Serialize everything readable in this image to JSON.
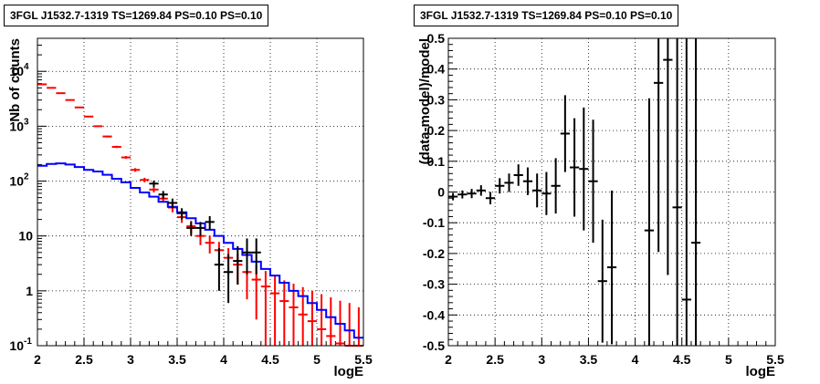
{
  "chart_data": [
    {
      "type": "line",
      "title": "3FGL J1532.7-1319 TS=1269.84 PS=0.10 PS=0.10",
      "xlabel": "logE",
      "ylabel": "Nb of counts",
      "xlim": [
        2,
        5.5
      ],
      "ylim": [
        0.1,
        40000
      ],
      "yscale": "log",
      "grid": true,
      "x_ticks": [
        "2",
        "2.5",
        "3",
        "3.5",
        "4",
        "4.5",
        "5",
        "5.5"
      ],
      "y_ticks": [
        {
          "value": 0.1,
          "label": "10",
          "exp": "-1"
        },
        {
          "value": 1,
          "label": "1",
          "exp": ""
        },
        {
          "value": 10,
          "label": "10",
          "exp": ""
        },
        {
          "value": 100,
          "label": "10",
          "exp": "2"
        },
        {
          "value": 1000,
          "label": "10",
          "exp": "3"
        },
        {
          "value": 10000,
          "label": "10",
          "exp": "4"
        }
      ],
      "series": [
        {
          "color": "#ff0000",
          "style": "errorbar",
          "x": [
            2.05,
            2.15,
            2.25,
            2.35,
            2.45,
            2.55,
            2.65,
            2.75,
            2.85,
            2.95,
            3.05,
            3.15,
            3.25,
            3.35,
            3.45,
            3.55,
            3.65,
            3.75,
            3.85,
            3.95,
            4.05,
            4.15,
            4.25,
            4.35,
            4.45,
            4.55,
            4.65,
            4.75,
            4.85,
            4.95,
            5.05,
            5.15,
            5.25,
            5.35,
            5.45
          ],
          "y": [
            5800,
            5000,
            4000,
            3000,
            2200,
            1500,
            1000,
            650,
            420,
            270,
            160,
            105,
            70,
            48,
            33,
            22,
            15,
            10,
            7.5,
            5.5,
            4.0,
            3.0,
            2.2,
            1.6,
            1.2,
            0.9,
            0.65,
            0.5,
            0.37,
            0.28,
            0.2,
            0.15,
            0.11,
            0.1,
            0.1
          ],
          "yerr_low": [
            80,
            70,
            60,
            55,
            45,
            40,
            30,
            25,
            20,
            16,
            12,
            10,
            8,
            7,
            6,
            4.7,
            3.9,
            3.2,
            2.7,
            2.3,
            2.0,
            1.7,
            1.5,
            1.3,
            1.1,
            0.9,
            0.65,
            0.5,
            0.37,
            0.28,
            0.2,
            0.15,
            0.11,
            0.1,
            0.1
          ],
          "yerr_high": [
            80,
            70,
            60,
            55,
            45,
            40,
            30,
            25,
            20,
            16,
            12,
            10,
            8,
            7,
            6,
            4.7,
            3.9,
            3.2,
            2.7,
            2.3,
            2.0,
            1.7,
            1.5,
            1.3,
            1.1,
            1.0,
            0.9,
            0.85,
            0.8,
            0.73,
            0.67,
            0.61,
            0.55,
            0.5,
            0.4
          ]
        },
        {
          "color": "#0000ff",
          "style": "step",
          "x": [
            2.05,
            2.15,
            2.25,
            2.35,
            2.45,
            2.55,
            2.65,
            2.75,
            2.85,
            2.95,
            3.05,
            3.15,
            3.25,
            3.35,
            3.45,
            3.55,
            3.65,
            3.75,
            3.85,
            3.95,
            4.05,
            4.15,
            4.25,
            4.35,
            4.45,
            4.55,
            4.65,
            4.75,
            4.85,
            4.95,
            5.05,
            5.15,
            5.25,
            5.35,
            5.45
          ],
          "y": [
            190,
            205,
            210,
            200,
            180,
            160,
            150,
            130,
            110,
            95,
            75,
            62,
            52,
            42,
            34,
            27,
            21,
            17,
            13,
            10,
            7.5,
            5.8,
            4.5,
            3.4,
            2.5,
            1.9,
            1.4,
            1.0,
            0.8,
            0.6,
            0.45,
            0.33,
            0.25,
            0.19,
            0.14
          ]
        },
        {
          "color": "#000000",
          "style": "errorbar",
          "x": [
            3.25,
            3.35,
            3.45,
            3.55,
            3.65,
            3.75,
            3.85,
            3.95,
            4.05,
            4.15,
            4.25,
            4.35
          ],
          "y": [
            90,
            57,
            40,
            26,
            14,
            14,
            18,
            3,
            2.2,
            3.5,
            5,
            5
          ],
          "yerr_low": [
            12,
            9,
            8,
            6,
            4,
            4,
            5,
            2,
            1.6,
            2.2,
            3,
            3
          ],
          "yerr_high": [
            12,
            9,
            8,
            6,
            4,
            4,
            5,
            3,
            2.5,
            3,
            4,
            4
          ]
        }
      ]
    },
    {
      "type": "scatter",
      "title": "3FGL J1532.7-1319 TS=1269.84 PS=0.10 PS=0.10",
      "xlabel": "logE",
      "ylabel": "(data-model)/model",
      "xlim": [
        2,
        5.5
      ],
      "ylim": [
        -0.5,
        0.5
      ],
      "grid": true,
      "x_ticks": [
        "2",
        "2.5",
        "3",
        "3.5",
        "4",
        "4.5",
        "5",
        "5.5"
      ],
      "y_ticks": [
        "-0.5",
        "-0.4",
        "-0.3",
        "-0.2",
        "-0.1",
        "0",
        "0.1",
        "0.2",
        "0.3",
        "0.4",
        "0.5"
      ],
      "series": [
        {
          "color": "#000000",
          "style": "errorbar",
          "x": [
            2.05,
            2.15,
            2.25,
            2.35,
            2.45,
            2.55,
            2.65,
            2.75,
            2.85,
            2.95,
            3.05,
            3.15,
            3.25,
            3.35,
            3.45,
            3.55,
            3.65,
            3.75,
            4.15,
            4.25,
            4.35,
            4.45,
            4.55,
            4.65
          ],
          "y": [
            -0.015,
            -0.008,
            -0.005,
            0.005,
            -0.02,
            0.02,
            0.03,
            0.055,
            0.035,
            0.005,
            -0.005,
            0.02,
            0.19,
            0.08,
            0.075,
            0.035,
            -0.29,
            -0.245,
            -0.125,
            0.355,
            0.43,
            -0.05,
            -0.35,
            -0.165
          ],
          "yerr": [
            0.012,
            0.013,
            0.015,
            0.017,
            0.02,
            0.025,
            0.03,
            0.035,
            0.045,
            0.055,
            0.07,
            0.09,
            0.125,
            0.16,
            0.2,
            0.2,
            0.2,
            0.25,
            0.43,
            0.55,
            0.7,
            0.75,
            0.9,
            1.0
          ]
        }
      ]
    }
  ]
}
